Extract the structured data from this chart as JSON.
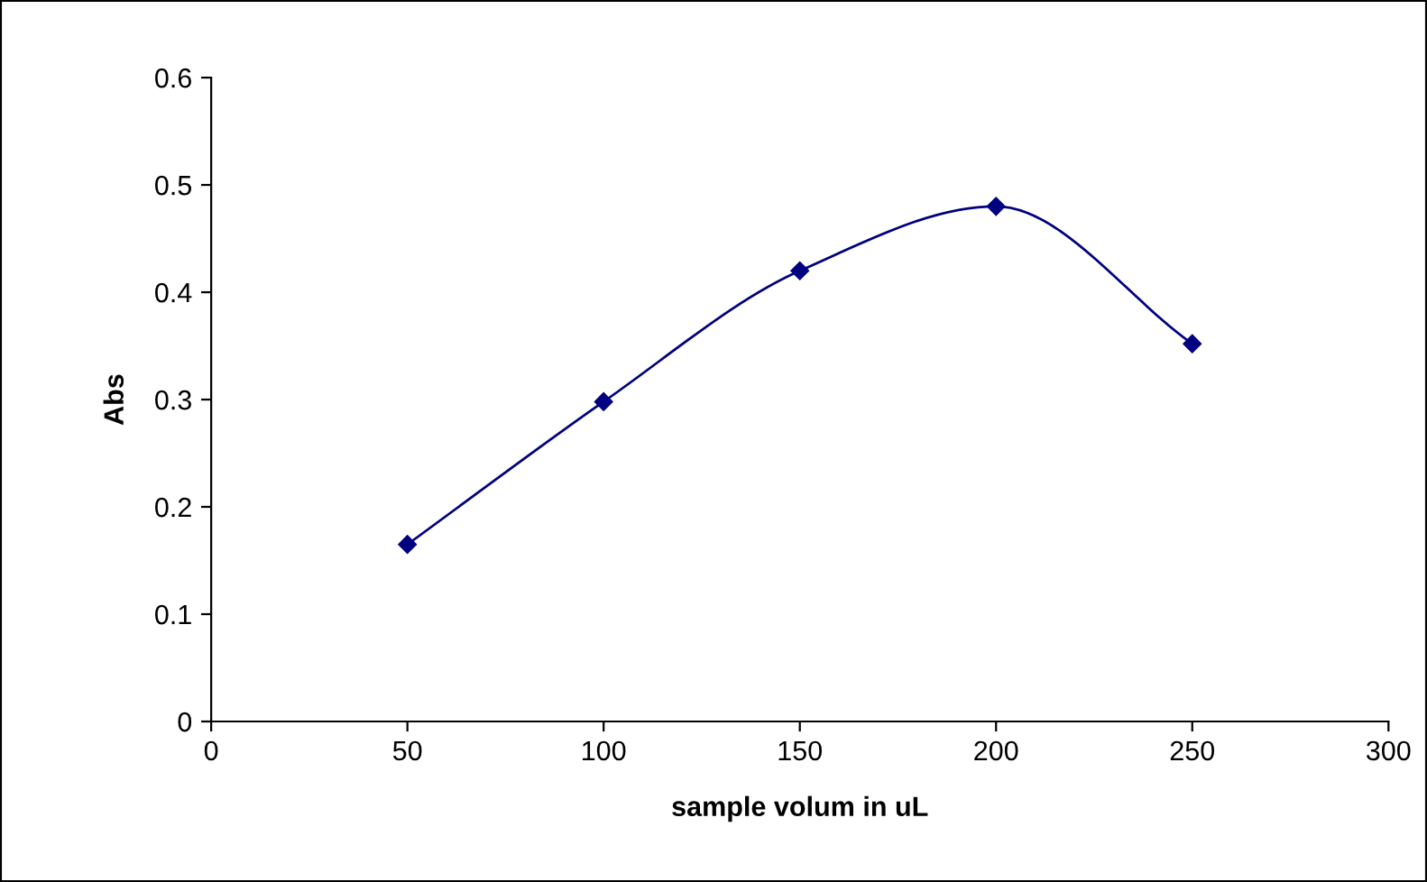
{
  "chart_data": {
    "type": "line",
    "xlabel": "sample volum in uL",
    "ylabel": "Abs",
    "x": [
      50,
      100,
      150,
      200,
      250
    ],
    "series": [
      {
        "color": "#000080",
        "values": [
          0.165,
          0.298,
          0.42,
          0.48,
          0.352
        ]
      }
    ],
    "xlim": [
      0,
      300
    ],
    "xticks": [
      0,
      50,
      100,
      150,
      200,
      250,
      300
    ],
    "ylim": [
      0,
      0.6
    ],
    "yticks": [
      0,
      0.1,
      0.2,
      0.3,
      0.4,
      0.5,
      0.6
    ],
    "marker": "diamond",
    "line_style": "solid",
    "grid": false,
    "legend": false
  }
}
